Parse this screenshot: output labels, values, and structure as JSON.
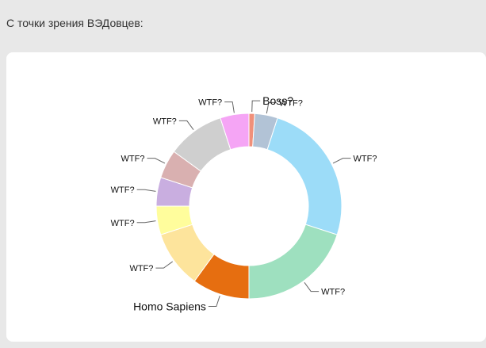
{
  "caption": "С точки зрения ВЭДовцев:",
  "chart_data": {
    "type": "pie",
    "donut": true,
    "legend": "none",
    "slices": [
      {
        "label": "Boss?",
        "value": 1,
        "color": "#f0907a"
      },
      {
        "label": "WTF?",
        "value": 4,
        "color": "#b2c3d6"
      },
      {
        "label": "WTF?",
        "value": 25,
        "color": "#9cdcf8"
      },
      {
        "label": "WTF?",
        "value": 20,
        "color": "#9ee0bf"
      },
      {
        "label": "Homo Sapiens",
        "value": 10,
        "color": "#e66e10"
      },
      {
        "label": "WTF?",
        "value": 10,
        "color": "#fde49c"
      },
      {
        "label": "WTF?",
        "value": 5,
        "color": "#fffd9c"
      },
      {
        "label": "WTF?",
        "value": 5,
        "color": "#c9aee0"
      },
      {
        "label": "WTF?",
        "value": 5,
        "color": "#d9b0b0"
      },
      {
        "label": "WTF?",
        "value": 10,
        "color": "#cfcfcf"
      },
      {
        "label": "WTF?",
        "value": 5,
        "color": "#f5a5f5"
      }
    ]
  }
}
